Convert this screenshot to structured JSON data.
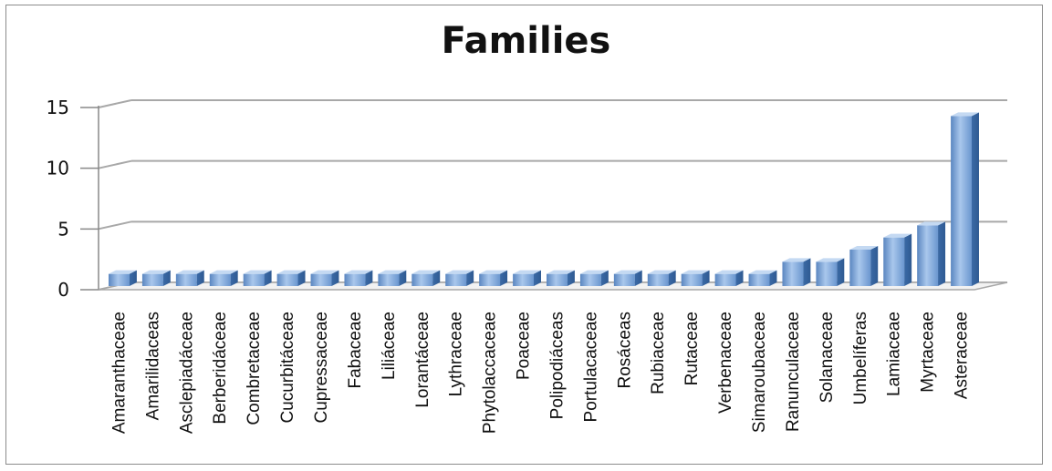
{
  "chart_data": {
    "type": "bar",
    "title": "Families",
    "xlabel": "",
    "ylabel": "",
    "ylim": [
      0,
      15
    ],
    "yticks": [
      0,
      5,
      10,
      15
    ],
    "grid": true,
    "legend": "none",
    "bar_color": "#6f9fd4",
    "categories": [
      "Amaranthaceae",
      "Amarilidaceas",
      "Asclepiadáceae",
      "Berberidáceae",
      "Combretaceae",
      "Cucurbitáceae",
      "Cupressaceae",
      "Fabaceae",
      "Liliáceae",
      "Lorantáceae",
      "Lythraceae",
      "Phytolaccaceae",
      "Poaceae",
      "Polipodiáceas",
      "Portulacaceae",
      "Rosáceas",
      "Rubiaceae",
      "Rutaceae",
      "Verbenaceae",
      "Simaroubaceae",
      "Ranunculaceae",
      "Solanaceae",
      "Umbelíferas",
      "Lamiaceae",
      "Myrtaceae",
      "Asteraceae"
    ],
    "values": [
      1,
      1,
      1,
      1,
      1,
      1,
      1,
      1,
      1,
      1,
      1,
      1,
      1,
      1,
      1,
      1,
      1,
      1,
      1,
      1,
      2,
      2,
      3,
      4,
      5,
      14
    ]
  }
}
